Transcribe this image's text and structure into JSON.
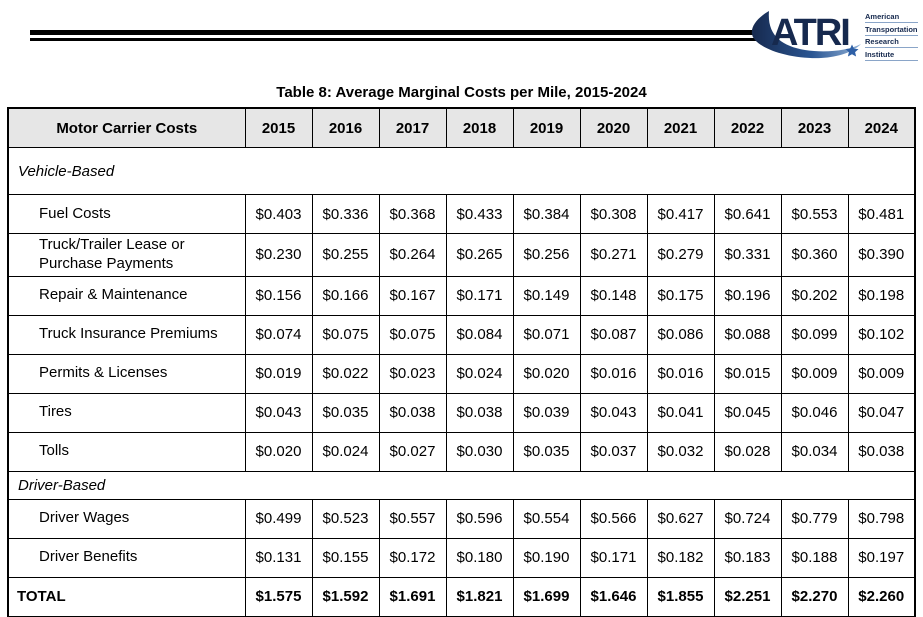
{
  "logo": {
    "acronym": "ATRI",
    "org_lines": [
      "American",
      "Transportation",
      "Research",
      "Institute"
    ],
    "colors": {
      "navy": "#16294e",
      "swoosh_mid_blue": "#2b5693",
      "swoosh_light_blue": "#8fb0d6",
      "star_blue": "#2d5fa6"
    }
  },
  "title": "Table 8: Average Marginal Costs per Mile, 2015-2024",
  "table": {
    "header": {
      "label": "Motor Carrier Costs",
      "years": [
        "2015",
        "2016",
        "2017",
        "2018",
        "2019",
        "2020",
        "2021",
        "2022",
        "2023",
        "2024"
      ]
    },
    "rows": [
      {
        "type": "section",
        "label": "Vehicle-Based"
      },
      {
        "type": "item",
        "label": "Fuel Costs",
        "values": [
          "$0.403",
          "$0.336",
          "$0.368",
          "$0.433",
          "$0.384",
          "$0.308",
          "$0.417",
          "$0.641",
          "$0.553",
          "$0.481"
        ]
      },
      {
        "type": "item",
        "label": "Truck/Trailer Lease or Purchase Payments",
        "values": [
          "$0.230",
          "$0.255",
          "$0.264",
          "$0.265",
          "$0.256",
          "$0.271",
          "$0.279",
          "$0.331",
          "$0.360",
          "$0.390"
        ]
      },
      {
        "type": "item",
        "label": "Repair & Maintenance",
        "values": [
          "$0.156",
          "$0.166",
          "$0.167",
          "$0.171",
          "$0.149",
          "$0.148",
          "$0.175",
          "$0.196",
          "$0.202",
          "$0.198"
        ]
      },
      {
        "type": "item",
        "label": "Truck Insurance Premiums",
        "values": [
          "$0.074",
          "$0.075",
          "$0.075",
          "$0.084",
          "$0.071",
          "$0.087",
          "$0.086",
          "$0.088",
          "$0.099",
          "$0.102"
        ]
      },
      {
        "type": "item",
        "label": "Permits & Licenses",
        "values": [
          "$0.019",
          "$0.022",
          "$0.023",
          "$0.024",
          "$0.020",
          "$0.016",
          "$0.016",
          "$0.015",
          "$0.009",
          "$0.009"
        ]
      },
      {
        "type": "item",
        "label": "Tires",
        "values": [
          "$0.043",
          "$0.035",
          "$0.038",
          "$0.038",
          "$0.039",
          "$0.043",
          "$0.041",
          "$0.045",
          "$0.046",
          "$0.047"
        ]
      },
      {
        "type": "item",
        "label": "Tolls",
        "values": [
          "$0.020",
          "$0.024",
          "$0.027",
          "$0.030",
          "$0.035",
          "$0.037",
          "$0.032",
          "$0.028",
          "$0.034",
          "$0.038"
        ]
      },
      {
        "type": "section",
        "label": "Driver-Based"
      },
      {
        "type": "item",
        "label": "Driver Wages",
        "values": [
          "$0.499",
          "$0.523",
          "$0.557",
          "$0.596",
          "$0.554",
          "$0.566",
          "$0.627",
          "$0.724",
          "$0.779",
          "$0.798"
        ]
      },
      {
        "type": "item",
        "label": "Driver Benefits",
        "values": [
          "$0.131",
          "$0.155",
          "$0.172",
          "$0.180",
          "$0.190",
          "$0.171",
          "$0.182",
          "$0.183",
          "$0.188",
          "$0.197"
        ]
      },
      {
        "type": "total",
        "label": "TOTAL",
        "values": [
          "$1.575",
          "$1.592",
          "$1.691",
          "$1.821",
          "$1.699",
          "$1.646",
          "$1.855",
          "$2.251",
          "$2.270",
          "$2.260"
        ]
      }
    ]
  }
}
